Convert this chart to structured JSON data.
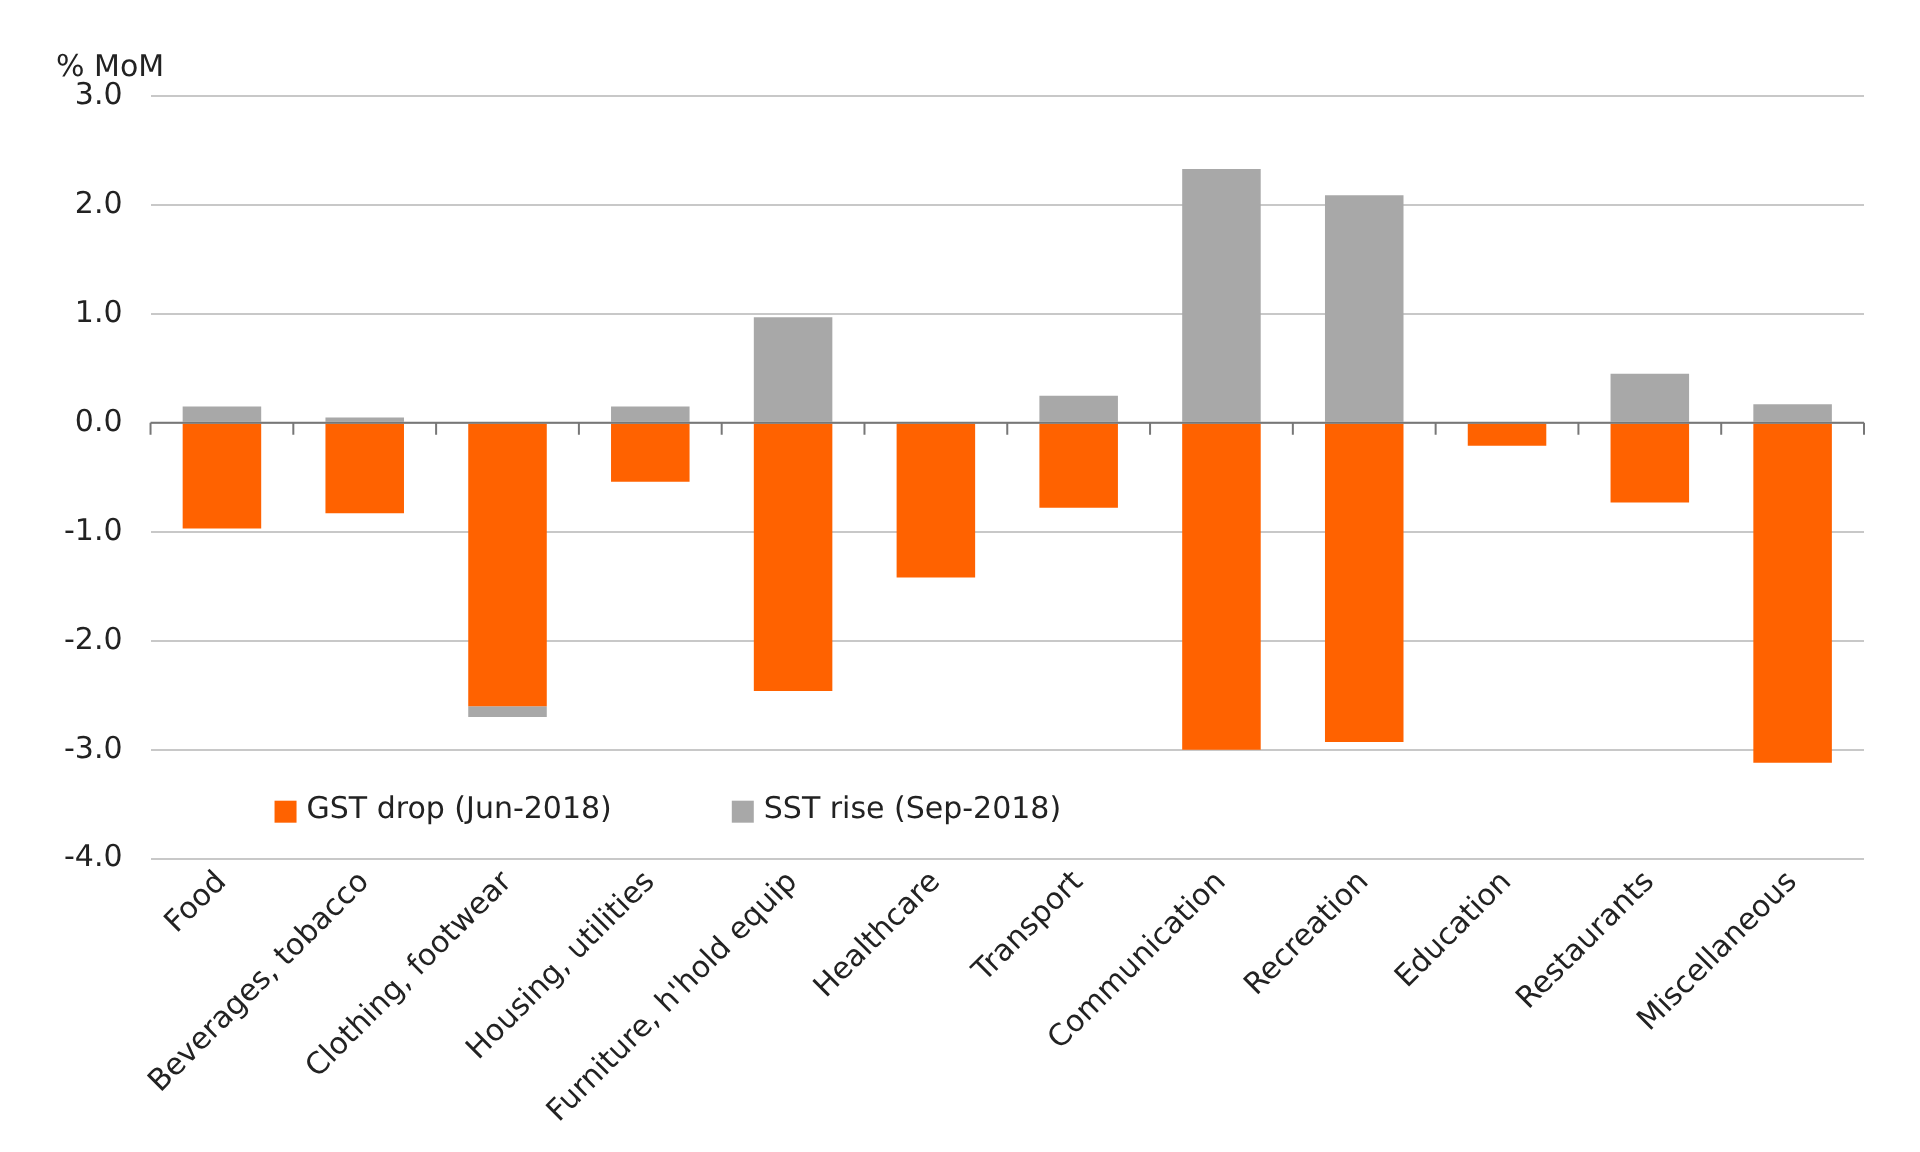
{
  "chart_data": {
    "type": "bar",
    "ylabel": "% MoM",
    "categories": [
      "Food",
      "Beverages, tobacco",
      "Clothing, footwear",
      "Housing, utilities",
      "Furniture, h'hold equip",
      "Healthcare",
      "Transport",
      "Communication",
      "Recreation",
      "Education",
      "Restaurants",
      "Miscellaneous"
    ],
    "series": [
      {
        "name": "GST drop (Jun-2018)",
        "color": "#ff6200",
        "values": [
          -0.97,
          -0.83,
          -2.6,
          -0.54,
          -2.46,
          -1.42,
          -0.78,
          -3.0,
          -2.93,
          -0.21,
          -0.73,
          -3.12
        ]
      },
      {
        "name": "SST rise (Sep-2018)",
        "color": "#a8a8a8",
        "values": [
          0.15,
          0.05,
          -0.1,
          0.15,
          0.97,
          0,
          0.25,
          2.33,
          2.09,
          0,
          0.45,
          0.17
        ]
      }
    ],
    "stacked": true,
    "ylim": [
      -4,
      3
    ],
    "yticks": [
      {
        "value": -4,
        "label": "-4.0"
      },
      {
        "value": -3,
        "label": "-3.0"
      },
      {
        "value": -2,
        "label": "-2.0"
      },
      {
        "value": -1,
        "label": "-1.0"
      },
      {
        "value": 0,
        "label": "0.0"
      },
      {
        "value": 1,
        "label": "1.0"
      },
      {
        "value": 2,
        "label": "2.0"
      },
      {
        "value": 3,
        "label": "3.0"
      }
    ],
    "grid": "y",
    "legend": "bottom"
  }
}
